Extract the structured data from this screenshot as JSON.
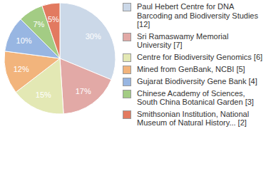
{
  "chart_data": {
    "type": "pie",
    "categories": [
      "Paul Hebert Centre for DNA Barcoding and Biodiversity Studies [12]",
      "Sri Ramaswamy Memorial University [7]",
      "Centre for Biodiversity Genomics [6]",
      "Mined from GenBank, NCBI [5]",
      "Gujarat Biodiversity Gene Bank [4]",
      "Chinese Academy of Sciences, South China Botanical Garden [3]",
      "Smithsonian Institution, National Museum of Natural History... [2]"
    ],
    "values": [
      30,
      17,
      15,
      12,
      10,
      7,
      5
    ],
    "value_labels": [
      "30%",
      "17%",
      "15%",
      "12%",
      "10%",
      "7%",
      "5%"
    ],
    "colors": [
      "#cbd8e8",
      "#e2a9a6",
      "#e3e8b4",
      "#f2b47c",
      "#98b6e2",
      "#a3cc84",
      "#e27a60"
    ],
    "data_labels": true,
    "legend": "right"
  }
}
